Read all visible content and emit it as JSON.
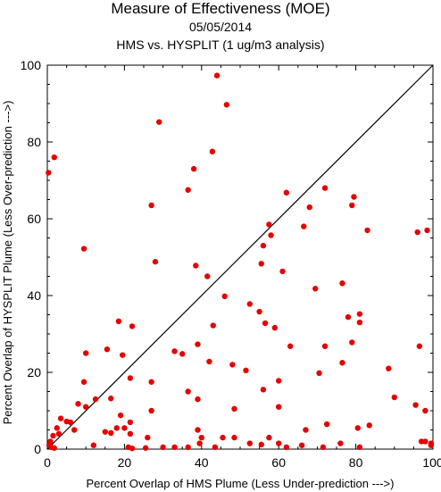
{
  "chart_data": {
    "type": "scatter",
    "title": "Measure of Effectiveness (MOE)",
    "subtitle_date": "05/05/2014",
    "subtitle_compare": "HMS vs. HYSPLIT  (1 ug/m3 analysis)",
    "xlabel": "Percent Overlap of HMS Plume (Less Under-prediction --->)",
    "ylabel": "Percent Overlap of HYSPLIT Plume (Less Over-prediction --->)",
    "xlim": [
      0,
      100
    ],
    "ylim": [
      0,
      100
    ],
    "x_ticks": [
      0,
      20,
      40,
      60,
      80,
      100
    ],
    "y_ticks": [
      0,
      20,
      40,
      60,
      80,
      100
    ],
    "point_color": "#e60000",
    "reference_line": "y = x",
    "grid": false,
    "points": [
      [
        0.3,
        72.0
      ],
      [
        1.8,
        76.0
      ],
      [
        9.5,
        52.2
      ],
      [
        29.0,
        85.2
      ],
      [
        44.0,
        97.3
      ],
      [
        46.5,
        89.7
      ],
      [
        42.8,
        77.5
      ],
      [
        38.0,
        73.0
      ],
      [
        36.5,
        67.5
      ],
      [
        27.0,
        63.5
      ],
      [
        28.0,
        48.8
      ],
      [
        38.5,
        47.8
      ],
      [
        41.5,
        45.0
      ],
      [
        62.0,
        66.8
      ],
      [
        57.5,
        58.5
      ],
      [
        66.5,
        58.0
      ],
      [
        68.0,
        63.0
      ],
      [
        72.0,
        68.0
      ],
      [
        79.5,
        65.7
      ],
      [
        79.0,
        63.5
      ],
      [
        83.0,
        57.0
      ],
      [
        96.0,
        56.5
      ],
      [
        98.5,
        57.0
      ],
      [
        56.0,
        53.0
      ],
      [
        58.0,
        55.7
      ],
      [
        55.5,
        48.3
      ],
      [
        61.0,
        46.3
      ],
      [
        46.0,
        39.8
      ],
      [
        43.0,
        32.2
      ],
      [
        52.5,
        37.8
      ],
      [
        55.0,
        35.8
      ],
      [
        56.5,
        32.8
      ],
      [
        59.0,
        31.6
      ],
      [
        69.5,
        41.8
      ],
      [
        76.5,
        43.2
      ],
      [
        81.0,
        35.2
      ],
      [
        78.0,
        34.4
      ],
      [
        81.0,
        33.0
      ],
      [
        18.5,
        33.3
      ],
      [
        22.0,
        32.0
      ],
      [
        39.0,
        27.3
      ],
      [
        33.0,
        25.5
      ],
      [
        35.0,
        24.8
      ],
      [
        63.0,
        26.8
      ],
      [
        72.0,
        26.8
      ],
      [
        79.0,
        27.8
      ],
      [
        96.5,
        26.8
      ],
      [
        10.0,
        25.0
      ],
      [
        15.5,
        26.0
      ],
      [
        19.5,
        24.5
      ],
      [
        21.5,
        18.5
      ],
      [
        27.0,
        17.5
      ],
      [
        9.5,
        17.5
      ],
      [
        36.5,
        15.0
      ],
      [
        42.0,
        22.8
      ],
      [
        48.0,
        22.0
      ],
      [
        51.5,
        20.5
      ],
      [
        56.0,
        15.5
      ],
      [
        60.0,
        17.8
      ],
      [
        70.5,
        19.8
      ],
      [
        76.5,
        22.5
      ],
      [
        88.5,
        21.0
      ],
      [
        8.0,
        11.8
      ],
      [
        10.0,
        11.0
      ],
      [
        12.5,
        13.0
      ],
      [
        16.5,
        13.2
      ],
      [
        19.0,
        8.8
      ],
      [
        21.5,
        7.0
      ],
      [
        27.0,
        10.0
      ],
      [
        39.0,
        13.0
      ],
      [
        48.5,
        10.5
      ],
      [
        60.0,
        11.0
      ],
      [
        90.0,
        13.5
      ],
      [
        95.5,
        11.5
      ],
      [
        98.0,
        10.0
      ],
      [
        3.5,
        8.0
      ],
      [
        5.0,
        7.2
      ],
      [
        6.0,
        7.0
      ],
      [
        2.5,
        5.5
      ],
      [
        1.5,
        3.5
      ],
      [
        0.8,
        2.0
      ],
      [
        0.5,
        1.0
      ],
      [
        1.0,
        0.5
      ],
      [
        1.8,
        0.3
      ],
      [
        3.0,
        4.0
      ],
      [
        7.0,
        5.0
      ],
      [
        12.0,
        1.0
      ],
      [
        15.0,
        4.5
      ],
      [
        16.5,
        4.2
      ],
      [
        18.0,
        5.5
      ],
      [
        20.0,
        5.5
      ],
      [
        21.5,
        4.0
      ],
      [
        21.0,
        0.5
      ],
      [
        22.0,
        0.2
      ],
      [
        25.5,
        0.3
      ],
      [
        26.0,
        3.0
      ],
      [
        30.0,
        0.5
      ],
      [
        33.0,
        0.5
      ],
      [
        36.5,
        0.5
      ],
      [
        39.0,
        5.0
      ],
      [
        39.5,
        1.5
      ],
      [
        40.0,
        3.0
      ],
      [
        43.5,
        0.5
      ],
      [
        45.5,
        3.0
      ],
      [
        48.5,
        3.0
      ],
      [
        52.5,
        1.5
      ],
      [
        55.5,
        1.2
      ],
      [
        57.5,
        3.0
      ],
      [
        60.0,
        1.5
      ],
      [
        62.0,
        0.5
      ],
      [
        66.0,
        1.0
      ],
      [
        67.0,
        5.0
      ],
      [
        71.5,
        0.5
      ],
      [
        72.5,
        6.5
      ],
      [
        76.0,
        1.5
      ],
      [
        80.5,
        5.5
      ],
      [
        81.0,
        0.5
      ],
      [
        83.5,
        6.2
      ],
      [
        97.0,
        2.0
      ],
      [
        98.0,
        2.0
      ],
      [
        99.5,
        1.5
      ],
      [
        99.5,
        1.0
      ]
    ]
  }
}
